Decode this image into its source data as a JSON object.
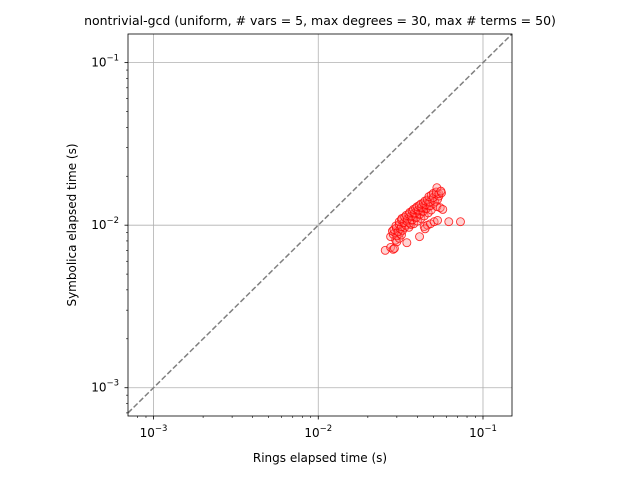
{
  "chart_data": {
    "type": "scatter",
    "title": "nontrivial-gcd (uniform, # vars = 5, max degrees = 30, max # terms = 50)",
    "xlabel": "Rings elapsed time (s)",
    "ylabel": "Symbolica elapsed time (s)",
    "xscale": "log",
    "yscale": "log",
    "xlim": [
      0.0007,
      0.15
    ],
    "ylim": [
      0.00067,
      0.15
    ],
    "grid": true,
    "x_ticks": [
      {
        "value": 0.001,
        "base": "10",
        "exp": "−3"
      },
      {
        "value": 0.01,
        "base": "10",
        "exp": "−2"
      },
      {
        "value": 0.1,
        "base": "10",
        "exp": "−1"
      }
    ],
    "y_ticks": [
      {
        "value": 0.001,
        "base": "10",
        "exp": "−3"
      },
      {
        "value": 0.01,
        "base": "10",
        "exp": "−2"
      },
      {
        "value": 0.1,
        "base": "10",
        "exp": "−1"
      }
    ],
    "reference_line": {
      "style": "dashed",
      "color": "#808080",
      "description": "y = x"
    },
    "marker": {
      "shape": "circle",
      "edge_color": "#ff0000",
      "face_color": "#ff8080",
      "face_alpha": 0.35
    },
    "series": [
      {
        "x": [
          0.0255,
          0.0275,
          0.0285,
          0.029,
          0.0295,
          0.03,
          0.031,
          0.0275,
          0.0285,
          0.0292,
          0.03,
          0.0305,
          0.0312,
          0.032,
          0.0282,
          0.0288,
          0.0298,
          0.0305,
          0.0315,
          0.0325,
          0.0335,
          0.0296,
          0.031,
          0.032,
          0.033,
          0.034,
          0.0355,
          0.0365,
          0.031,
          0.032,
          0.0332,
          0.0345,
          0.036,
          0.037,
          0.038,
          0.0322,
          0.0335,
          0.0348,
          0.036,
          0.0372,
          0.039,
          0.04,
          0.0342,
          0.0355,
          0.0368,
          0.038,
          0.0395,
          0.041,
          0.042,
          0.036,
          0.0372,
          0.0385,
          0.04,
          0.0415,
          0.043,
          0.044,
          0.0378,
          0.039,
          0.0405,
          0.042,
          0.0435,
          0.045,
          0.0465,
          0.0398,
          0.041,
          0.0425,
          0.044,
          0.0455,
          0.047,
          0.0485,
          0.042,
          0.0435,
          0.045,
          0.0465,
          0.048,
          0.05,
          0.0445,
          0.046,
          0.0475,
          0.049,
          0.051,
          0.053,
          0.047,
          0.0485,
          0.05,
          0.052,
          0.054,
          0.05,
          0.052,
          0.054,
          0.056,
          0.044,
          0.046,
          0.048,
          0.0505,
          0.053,
          0.0525,
          0.0555,
          0.0525,
          0.055,
          0.057,
          0.0345,
          0.0412,
          0.0445,
          0.062,
          0.073
        ],
        "y": [
          0.007,
          0.0073,
          0.0071,
          0.0072,
          0.0081,
          0.0079,
          0.0083,
          0.0085,
          0.0088,
          0.009,
          0.0086,
          0.0092,
          0.0089,
          0.0087,
          0.0092,
          0.0094,
          0.0096,
          0.0091,
          0.0095,
          0.0093,
          0.0097,
          0.0099,
          0.0101,
          0.0098,
          0.0103,
          0.01,
          0.0097,
          0.0101,
          0.0105,
          0.0108,
          0.0104,
          0.0106,
          0.0103,
          0.0107,
          0.0102,
          0.011,
          0.0112,
          0.0109,
          0.0113,
          0.0108,
          0.0111,
          0.0106,
          0.0115,
          0.0117,
          0.0114,
          0.0118,
          0.0112,
          0.0116,
          0.011,
          0.012,
          0.0122,
          0.0119,
          0.0123,
          0.0117,
          0.0121,
          0.0114,
          0.0125,
          0.0127,
          0.0124,
          0.0128,
          0.0122,
          0.0126,
          0.0119,
          0.013,
          0.0132,
          0.0129,
          0.0133,
          0.0127,
          0.0131,
          0.0124,
          0.0135,
          0.0137,
          0.0134,
          0.0138,
          0.0132,
          0.0136,
          0.0141,
          0.0143,
          0.0139,
          0.0145,
          0.014,
          0.0144,
          0.015,
          0.0153,
          0.0148,
          0.0155,
          0.0151,
          0.0157,
          0.016,
          0.0156,
          0.0158,
          0.0098,
          0.01,
          0.0102,
          0.0105,
          0.0107,
          0.017,
          0.0162,
          0.013,
          0.0128,
          0.0125,
          0.0078,
          0.0085,
          0.0095,
          0.0105,
          0.0105
        ]
      }
    ]
  }
}
